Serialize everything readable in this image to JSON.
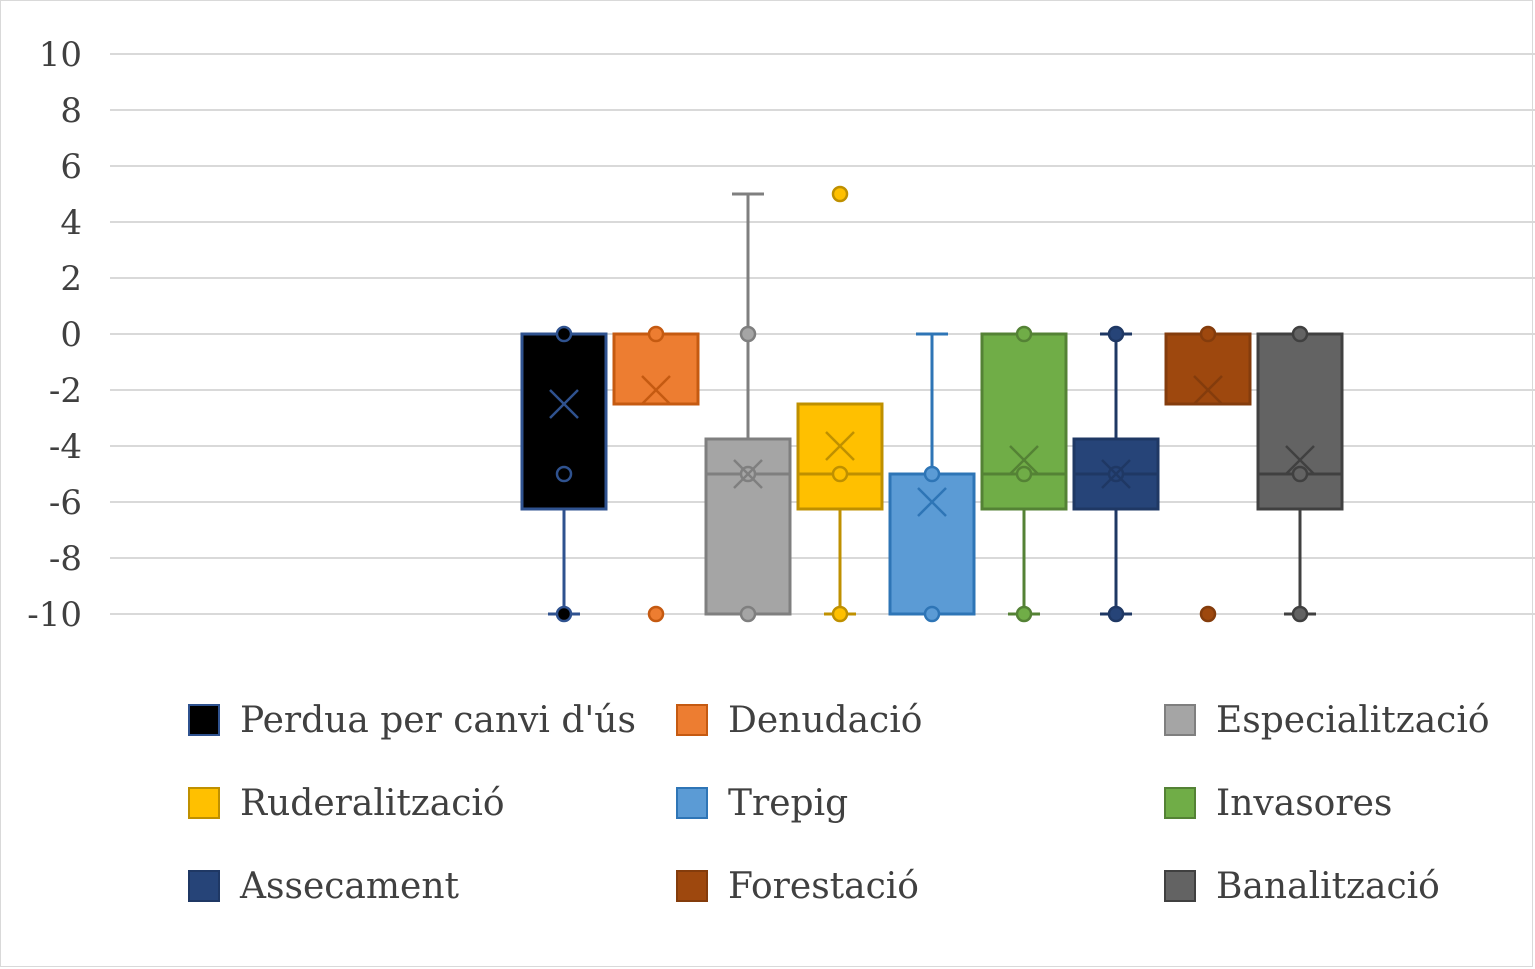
{
  "chart_data": {
    "type": "box",
    "ylim": [
      -10,
      10
    ],
    "yticks": [
      10,
      8,
      6,
      4,
      2,
      0,
      -2,
      -4,
      -6,
      -8,
      -10
    ],
    "grid": true,
    "legend_position": "bottom",
    "series": [
      {
        "name": "Perdua per canvi d'ús",
        "color": "#000000",
        "edge": "#2f528f",
        "min": -10,
        "q1": -6.25,
        "median": -6.25,
        "q3": 0,
        "max": 0,
        "mean": -2.5,
        "points": [
          0,
          -5,
          -10
        ]
      },
      {
        "name": "Denudació",
        "color": "#ed7d31",
        "edge": "#c55a11",
        "min": -2.5,
        "q1": -2.5,
        "median": -2.5,
        "q3": 0,
        "max": 0,
        "mean": -2,
        "points": [
          0,
          -10
        ]
      },
      {
        "name": "Especialització",
        "color": "#a5a5a5",
        "edge": "#7f7f7f",
        "min": -10,
        "q1": -10,
        "median": -5,
        "q3": -3.75,
        "max": 5,
        "mean": -5,
        "points": [
          0,
          -5,
          -10
        ]
      },
      {
        "name": "Ruderalització",
        "color": "#ffc000",
        "edge": "#bf9000",
        "min": -10,
        "q1": -6.25,
        "median": -5,
        "q3": -2.5,
        "max": -2.5,
        "mean": -4,
        "points": [
          5,
          -5,
          -10
        ]
      },
      {
        "name": "Trepig",
        "color": "#5b9bd5",
        "edge": "#2e75b6",
        "min": -10,
        "q1": -10,
        "median": -10,
        "q3": -5,
        "max": 0,
        "mean": -6,
        "points": [
          -5,
          -10
        ]
      },
      {
        "name": "Invasores",
        "color": "#70ad47",
        "edge": "#548235",
        "min": -10,
        "q1": -6.25,
        "median": -5,
        "q3": 0,
        "max": 0,
        "mean": -4.5,
        "points": [
          0,
          -5,
          -10
        ]
      },
      {
        "name": "Assecament",
        "color": "#264478",
        "edge": "#1f3864",
        "min": -10,
        "q1": -6.25,
        "median": -5,
        "q3": -3.75,
        "max": 0,
        "mean": -5,
        "points": [
          0,
          -5,
          -10
        ]
      },
      {
        "name": "Forestació",
        "color": "#9e480e",
        "edge": "#843c0c",
        "min": -2.5,
        "q1": -2.5,
        "median": -2.5,
        "q3": 0,
        "max": 0,
        "mean": -2,
        "points": [
          0,
          -10
        ]
      },
      {
        "name": "Banalització",
        "color": "#636363",
        "edge": "#404040",
        "min": -10,
        "q1": -6.25,
        "median": -5,
        "q3": 0,
        "max": 0,
        "mean": -4.5,
        "points": [
          0,
          -5,
          -10
        ]
      }
    ]
  }
}
